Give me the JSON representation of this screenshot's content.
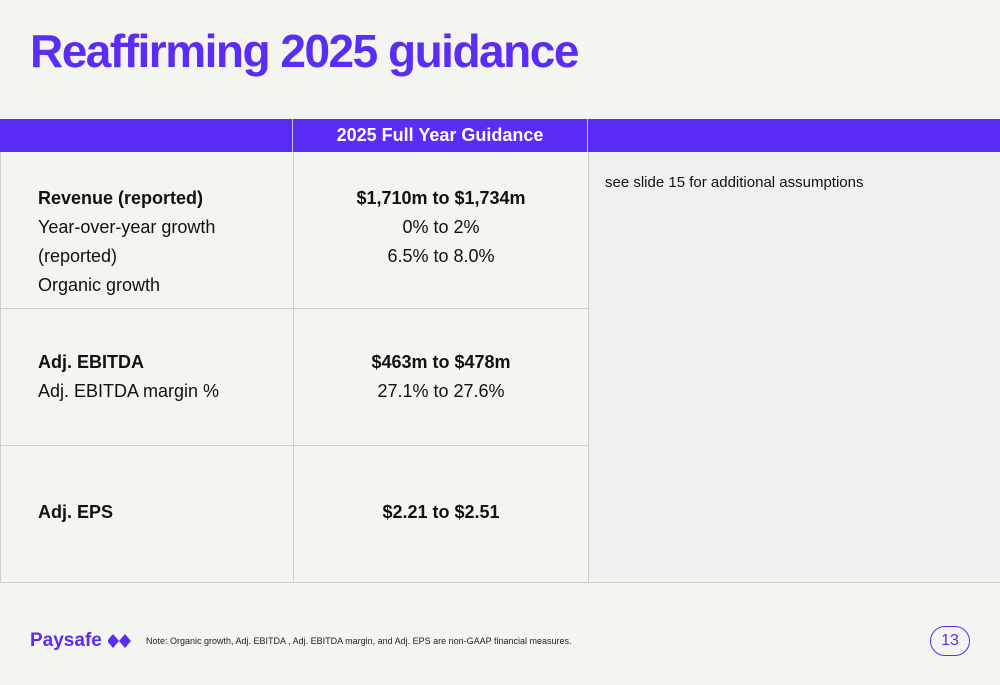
{
  "title": "Reaffirming 2025 guidance",
  "table": {
    "header": "2025 Full Year Guidance",
    "rows": [
      {
        "labels": [
          {
            "text": "Revenue (reported)",
            "bold": true
          },
          {
            "text": "Year-over-year growth (reported)",
            "bold": false
          },
          {
            "text": "Organic growth",
            "bold": false
          }
        ],
        "values": [
          {
            "text": "$1,710m to $1,734m",
            "bold": true
          },
          {
            "text": "0% to 2%",
            "bold": false
          },
          {
            "text": "6.5% to 8.0%",
            "bold": false
          }
        ]
      },
      {
        "labels": [
          {
            "text": "Adj. EBITDA",
            "bold": true
          },
          {
            "text": "Adj. EBITDA margin %",
            "bold": false
          }
        ],
        "values": [
          {
            "text": "$463m to $478m",
            "bold": true
          },
          {
            "text": "27.1% to 27.6%",
            "bold": false
          }
        ]
      },
      {
        "labels": [
          {
            "text": "Adj. EPS",
            "bold": true
          }
        ],
        "values": [
          {
            "text": "$2.21 to $2.51",
            "bold": true
          }
        ]
      }
    ],
    "assumptions_note": "see slide 15 for additional assumptions"
  },
  "footer": {
    "brand": "Paysafe",
    "brand_icon": "paysafe-diamonds-icon",
    "note": "Note: Organic growth, Adj. EBITDA , Adj. EBITDA margin, and Adj. EPS are non-GAAP financial measures.",
    "page_number": "13"
  },
  "colors": {
    "accent": "#5b2cf6",
    "background": "#f4f4f0"
  }
}
